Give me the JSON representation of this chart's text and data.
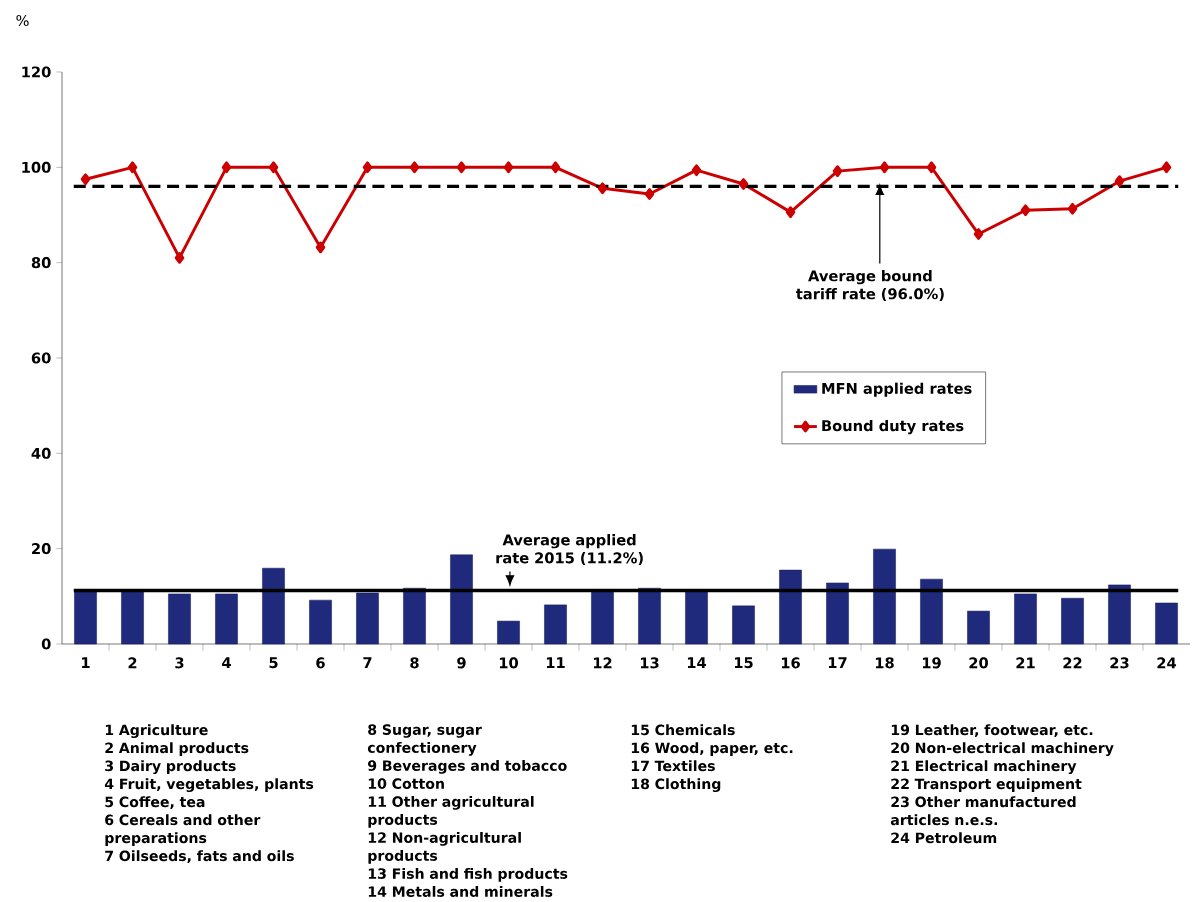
{
  "chart_data": {
    "type": "bar",
    "ylabel": "%",
    "categories": [
      "1",
      "2",
      "3",
      "4",
      "5",
      "6",
      "7",
      "8",
      "9",
      "10",
      "11",
      "12",
      "13",
      "14",
      "15",
      "16",
      "17",
      "18",
      "19",
      "20",
      "21",
      "22",
      "23",
      "24"
    ],
    "series": [
      {
        "name": "MFN applied rates",
        "color": "#1f2a7c",
        "values": [
          10.9,
          11.0,
          10.5,
          10.5,
          15.9,
          9.2,
          10.7,
          11.7,
          18.7,
          4.8,
          8.2,
          11.0,
          11.7,
          11.0,
          8.0,
          15.5,
          12.8,
          19.9,
          13.6,
          6.9,
          10.5,
          9.6,
          12.4,
          8.6
        ]
      },
      {
        "name": "Bound duty rates",
        "type": "line",
        "color": "#cc0000",
        "values": [
          97.5,
          100,
          81,
          100,
          100,
          83.2,
          100,
          100,
          100,
          100,
          100,
          95.6,
          94.4,
          99.4,
          96.5,
          90.6,
          99.2,
          100,
          100,
          86.0,
          91.0,
          91.3,
          97.1,
          100
        ]
      }
    ],
    "marker": "diamond",
    "ylim": [
      0,
      120
    ],
    "yticks": [
      0,
      20,
      40,
      60,
      80,
      100,
      120
    ],
    "legend": "right",
    "ref_lines": [
      {
        "axis": "y",
        "value": 96,
        "label": "Average bound tariff rate (96.0%)",
        "line_style": "dashed",
        "color": "#000000"
      },
      {
        "axis": "y",
        "value": 11.2,
        "label": "Average applied rate 2015 (11.2%)",
        "line_style": "solid",
        "color": "#000000"
      }
    ],
    "annotations": [
      "1 Agriculture",
      "2 Animal products",
      "3 Dairy products",
      "4 Fruit, vegetables, plants",
      "5 Coffee, tea",
      "6 Cereals and other preparations",
      "7 Oilseeds, fats and oils",
      "8 Sugar, sugar confectionery",
      "9 Beverages and tobacco",
      "10 Cotton",
      "11 Other agricultural products",
      "12 Non-agricultural products",
      "13 Fish and fish products",
      "14 Metals and minerals",
      "15 Chemicals",
      "16 Wood, paper, etc.",
      "17 Textiles",
      "18 Clothing",
      "19 Leather, footwear, etc.",
      "20 Non-electrical machinery",
      "21 Electrical machinery",
      "22 Transport equipment",
      "23 Other manufactured articles n.e.s.",
      "24 Petroleum"
    ]
  }
}
